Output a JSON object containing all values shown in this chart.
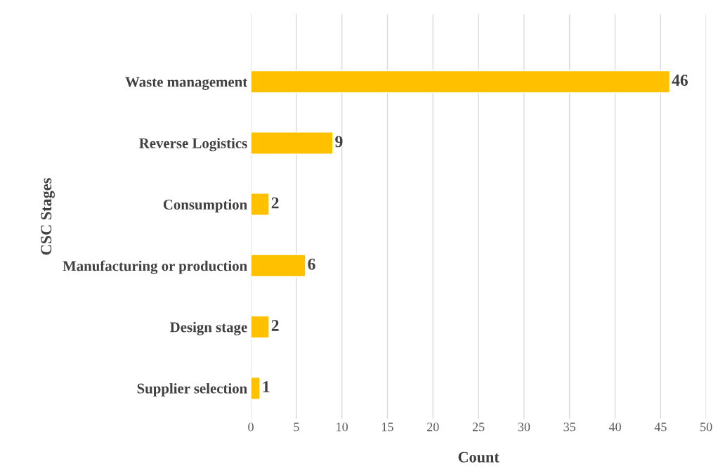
{
  "chart_data": {
    "type": "bar",
    "orientation": "horizontal",
    "xlabel": "Count",
    "ylabel": "CSC Stages",
    "categories": [
      "Waste management",
      "Reverse Logistics",
      "Consumption",
      "Manufacturing or production",
      "Design stage",
      "Supplier selection"
    ],
    "values": [
      46,
      9,
      2,
      6,
      2,
      1
    ],
    "color": "#ffc000",
    "xlim": [
      0,
      50
    ],
    "xticks": [
      0,
      5,
      10,
      15,
      20,
      25,
      30,
      35,
      40,
      45,
      50
    ],
    "grid": "x",
    "data_labels": true
  }
}
